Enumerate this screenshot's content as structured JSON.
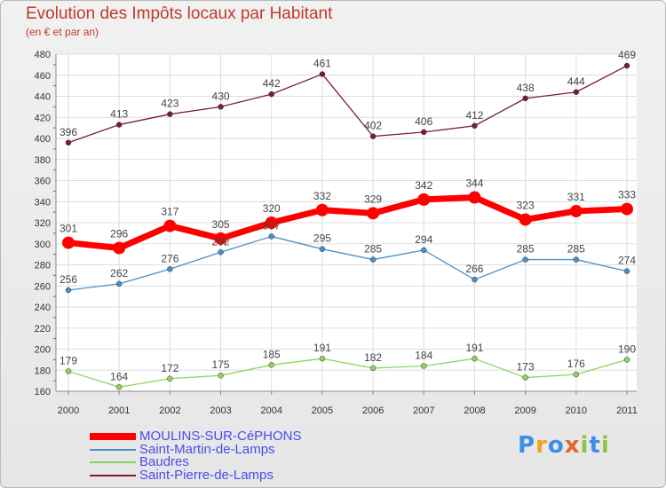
{
  "header": {
    "title": "Evolution des Impôts locaux par Habitant",
    "subtitle": "(en € et par an)"
  },
  "logo": {
    "letters": [
      "P",
      "r",
      "o",
      "x",
      "i",
      "t",
      "i"
    ],
    "colors": [
      "#3d8ee6",
      "#f0a21c",
      "#3d8ee6",
      "#e8632a",
      "#8ec63f",
      "#3d8ee6",
      "#8ec63f"
    ]
  },
  "chart_data": {
    "type": "line",
    "x": [
      "2000",
      "2001",
      "2002",
      "2003",
      "2004",
      "2005",
      "2006",
      "2007",
      "2008",
      "2009",
      "2010",
      "2011"
    ],
    "ylim": [
      160,
      480
    ],
    "yticks": [
      160,
      180,
      200,
      220,
      240,
      260,
      280,
      300,
      320,
      340,
      360,
      380,
      400,
      420,
      440,
      460,
      480
    ],
    "grid": true,
    "legend_position": "bottom-left",
    "series": [
      {
        "name": "MOULINS-SUR-CéPHONS",
        "color": "#ff0000",
        "values": [
          301,
          296,
          317,
          305,
          320,
          332,
          329,
          342,
          344,
          323,
          331,
          333
        ]
      },
      {
        "name": "Saint-Martin-de-Lamps",
        "color": "#4a90c8",
        "values": [
          256,
          262,
          276,
          292,
          307,
          295,
          285,
          294,
          266,
          285,
          285,
          274
        ]
      },
      {
        "name": "Baudres",
        "color": "#8fd35a",
        "values": [
          179,
          164,
          172,
          175,
          185,
          191,
          182,
          184,
          191,
          173,
          176,
          190
        ]
      },
      {
        "name": "Saint-Pierre-de-Lamps",
        "color": "#7a1e2e",
        "values": [
          396,
          413,
          423,
          430,
          442,
          461,
          402,
          406,
          412,
          438,
          444,
          469
        ]
      }
    ]
  }
}
